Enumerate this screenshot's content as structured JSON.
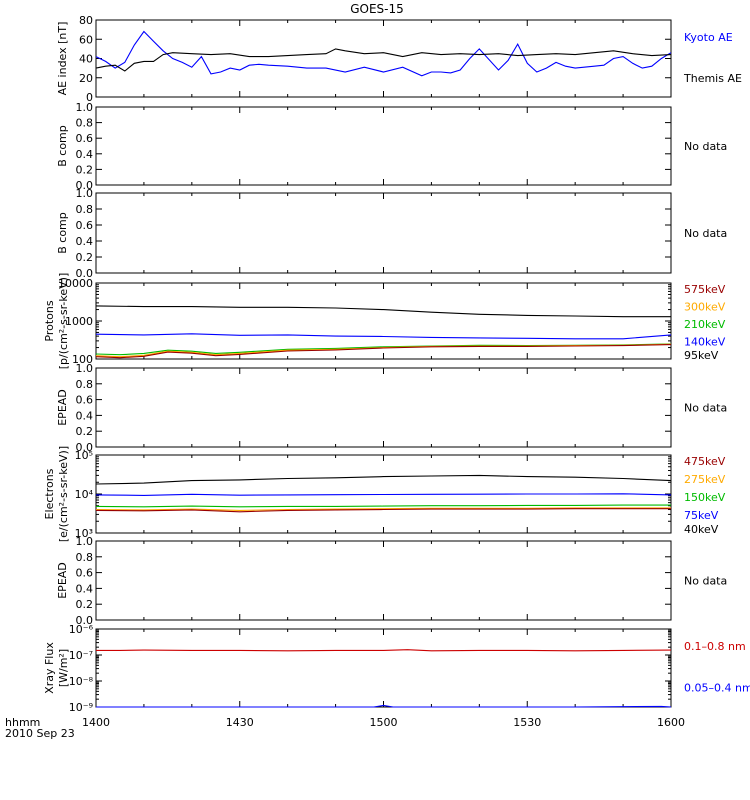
{
  "title": "GOES-15",
  "time_axis": {
    "unit_label": "hhmm",
    "date_label": "2010 Sep 23",
    "ticks": [
      "1400",
      "1430",
      "1500",
      "1530",
      "1600"
    ]
  },
  "colors": {
    "black": "#000000",
    "blue": "#0000ff",
    "red": "#cc0000",
    "orange": "#ffaa00",
    "green": "#00dd00",
    "darkred": "#990000"
  },
  "chart_data": [
    {
      "id": "ae",
      "type": "line",
      "ylabel": "AE index [nT]",
      "ylim": [
        0,
        80
      ],
      "yticks": [
        "0",
        "20",
        "40",
        "60",
        "80"
      ],
      "legend": [
        {
          "name": "Kyoto AE",
          "color": "#0000ff"
        },
        {
          "name": "Themis AE",
          "color": "#000000"
        }
      ],
      "series": [
        {
          "name": "Kyoto AE",
          "color": "#0000ff",
          "x": [
            0,
            2,
            4,
            6,
            8,
            10,
            12,
            14,
            16,
            18,
            20,
            22,
            24,
            26,
            28,
            30,
            32,
            34,
            36,
            40,
            44,
            48,
            52,
            56,
            60,
            64,
            68,
            70,
            72,
            74,
            76,
            78,
            80,
            84,
            86,
            88,
            90,
            92,
            94,
            96,
            98,
            100,
            104,
            106,
            108,
            110,
            112,
            114,
            116,
            118,
            120
          ],
          "y": [
            42,
            37,
            30,
            36,
            54,
            68,
            58,
            48,
            40,
            36,
            31,
            42,
            24,
            26,
            30,
            28,
            33,
            34,
            33,
            32,
            30,
            30,
            26,
            31,
            26,
            31,
            22,
            26,
            26,
            25,
            28,
            40,
            50,
            28,
            38,
            55,
            35,
            26,
            30,
            36,
            32,
            30,
            32,
            33,
            40,
            42,
            35,
            30,
            32,
            40,
            46
          ]
        },
        {
          "name": "Themis AE",
          "color": "#000000",
          "x": [
            0,
            2,
            4,
            6,
            8,
            10,
            12,
            14,
            16,
            20,
            24,
            28,
            32,
            36,
            40,
            44,
            48,
            50,
            52,
            56,
            60,
            64,
            68,
            72,
            76,
            80,
            84,
            88,
            92,
            96,
            100,
            104,
            108,
            112,
            116,
            120
          ],
          "y": [
            30,
            32,
            33,
            27,
            35,
            37,
            37,
            44,
            46,
            45,
            44,
            45,
            42,
            42,
            43,
            44,
            45,
            50,
            48,
            45,
            46,
            42,
            46,
            44,
            45,
            44,
            45,
            43,
            44,
            45,
            44,
            46,
            48,
            45,
            43,
            44
          ]
        }
      ]
    },
    {
      "id": "bcomp1",
      "type": "line",
      "ylabel": "B comp",
      "ylim": [
        0,
        1
      ],
      "yticks": [
        "0.0",
        "0.2",
        "0.4",
        "0.6",
        "0.8",
        "1.0"
      ],
      "status": "No data"
    },
    {
      "id": "bcomp2",
      "type": "line",
      "ylabel": "B comp",
      "ylim": [
        0,
        1
      ],
      "yticks": [
        "0.0",
        "0.2",
        "0.4",
        "0.6",
        "0.8",
        "1.0"
      ],
      "status": "No data"
    },
    {
      "id": "protons",
      "type": "line",
      "ylabel": "Protons",
      "ylabel2": "[p/(cm²-s-sr-keV)]",
      "yscale": "log",
      "ylim": [
        100,
        10000
      ],
      "yticks": [
        "100",
        "1000",
        "10000"
      ],
      "legend": [
        {
          "name": "575keV",
          "color": "#990000"
        },
        {
          "name": "300keV",
          "color": "#ffaa00"
        },
        {
          "name": "210keV",
          "color": "#00bb00"
        },
        {
          "name": "140keV",
          "color": "#0000ff"
        },
        {
          "name": "95keV",
          "color": "#000000"
        }
      ],
      "series": [
        {
          "name": "95keV",
          "color": "#000000",
          "x": [
            0,
            10,
            20,
            30,
            40,
            50,
            60,
            70,
            80,
            90,
            100,
            110,
            120
          ],
          "y": [
            2500,
            2400,
            2400,
            2300,
            2300,
            2200,
            2000,
            1700,
            1500,
            1400,
            1350,
            1300,
            1300
          ]
        },
        {
          "name": "140keV",
          "color": "#0000ff",
          "x": [
            0,
            10,
            20,
            30,
            40,
            50,
            60,
            70,
            80,
            90,
            100,
            110,
            120
          ],
          "y": [
            450,
            430,
            460,
            420,
            430,
            400,
            390,
            370,
            360,
            350,
            340,
            340,
            430
          ]
        },
        {
          "name": "210keV",
          "color": "#00bb00",
          "x": [
            0,
            5,
            10,
            15,
            20,
            25,
            30,
            40,
            50,
            60,
            70,
            80,
            90,
            100,
            110,
            120
          ],
          "y": [
            135,
            130,
            140,
            170,
            160,
            140,
            150,
            180,
            190,
            210,
            220,
            230,
            225,
            230,
            235,
            250
          ]
        },
        {
          "name": "300keV",
          "color": "#ffaa00",
          "x": [
            0,
            5,
            10,
            15,
            20,
            25,
            30,
            40,
            50,
            60,
            70,
            80,
            90,
            100,
            110,
            120
          ],
          "y": [
            122,
            115,
            125,
            160,
            150,
            130,
            140,
            170,
            180,
            200,
            215,
            220,
            220,
            225,
            230,
            245
          ]
        },
        {
          "name": "575keV",
          "color": "#990000",
          "x": [
            0,
            5,
            10,
            15,
            20,
            25,
            30,
            40,
            50,
            60,
            70,
            80,
            90,
            100,
            110,
            120
          ],
          "y": [
            115,
            108,
            118,
            152,
            142,
            122,
            132,
            162,
            172,
            195,
            210,
            215,
            215,
            220,
            225,
            240
          ]
        }
      ]
    },
    {
      "id": "epead1",
      "type": "line",
      "ylabel": "EPEAD",
      "ylim": [
        0,
        1
      ],
      "yticks": [
        "0.0",
        "0.2",
        "0.4",
        "0.6",
        "0.8",
        "1.0"
      ],
      "status": "No data"
    },
    {
      "id": "electrons",
      "type": "line",
      "ylabel": "Electrons",
      "ylabel2": "[e/(cm²-s-sr-keV)]",
      "yscale": "log",
      "ylim": [
        1000,
        100000
      ],
      "yticks": [
        "10³",
        "10⁴",
        "10⁵"
      ],
      "legend": [
        {
          "name": "475keV",
          "color": "#990000"
        },
        {
          "name": "275keV",
          "color": "#ffaa00"
        },
        {
          "name": "150keV",
          "color": "#00bb00"
        },
        {
          "name": "75keV",
          "color": "#0000ff"
        },
        {
          "name": "40keV",
          "color": "#000000"
        }
      ],
      "series": [
        {
          "name": "40keV",
          "color": "#000000",
          "x": [
            0,
            10,
            20,
            30,
            40,
            50,
            60,
            70,
            80,
            90,
            100,
            110,
            120
          ],
          "y": [
            18000,
            19000,
            22000,
            23000,
            25000,
            26000,
            28000,
            29000,
            30000,
            28000,
            27000,
            25000,
            22000
          ]
        },
        {
          "name": "75keV",
          "color": "#0000ff",
          "x": [
            0,
            10,
            20,
            30,
            40,
            50,
            60,
            70,
            80,
            90,
            100,
            110,
            120
          ],
          "y": [
            9500,
            9200,
            9800,
            9300,
            9500,
            9600,
            9700,
            9800,
            9900,
            10000,
            10000,
            10100,
            9500
          ]
        },
        {
          "name": "150keV",
          "color": "#00bb00",
          "x": [
            0,
            10,
            20,
            30,
            40,
            50,
            60,
            70,
            80,
            90,
            100,
            110,
            120
          ],
          "y": [
            4800,
            4700,
            4900,
            4700,
            4800,
            4800,
            4900,
            5000,
            5000,
            5100,
            5100,
            5200,
            5200
          ]
        },
        {
          "name": "275keV",
          "color": "#ffaa00",
          "x": [
            0,
            10,
            20,
            30,
            40,
            50,
            60,
            70,
            80,
            90,
            100,
            110,
            120
          ],
          "y": [
            4000,
            3900,
            4100,
            3800,
            4000,
            4100,
            4200,
            4300,
            4300,
            4300,
            4400,
            4400,
            4400
          ]
        },
        {
          "name": "475keV",
          "color": "#990000",
          "x": [
            0,
            10,
            20,
            30,
            40,
            50,
            60,
            70,
            80,
            90,
            100,
            110,
            120
          ],
          "y": [
            3800,
            3700,
            3900,
            3500,
            3800,
            3900,
            4000,
            4100,
            4100,
            4100,
            4200,
            4200,
            4200
          ]
        }
      ]
    },
    {
      "id": "epead2",
      "type": "line",
      "ylabel": "EPEAD",
      "ylim": [
        0,
        1
      ],
      "yticks": [
        "0.0",
        "0.2",
        "0.4",
        "0.6",
        "0.8",
        "1.0"
      ],
      "status": "No data"
    },
    {
      "id": "xray",
      "type": "line",
      "ylabel": "Xray Flux",
      "ylabel2": "[W/m²]",
      "yscale": "log",
      "ylim": [
        1e-09,
        1e-06
      ],
      "yticks": [
        "10⁻⁹",
        "10⁻⁸",
        "10⁻⁷",
        "10⁻⁶"
      ],
      "legend": [
        {
          "name": "0.1–0.8 nm",
          "color": "#cc0000"
        },
        {
          "name": "0.05–0.4 nm",
          "color": "#0000ff"
        }
      ],
      "series": [
        {
          "name": "0.1–0.8 nm",
          "color": "#cc0000",
          "x": [
            0,
            5,
            10,
            20,
            30,
            40,
            50,
            60,
            65,
            70,
            80,
            90,
            100,
            110,
            120
          ],
          "y": [
            1.5e-07,
            1.5e-07,
            1.55e-07,
            1.5e-07,
            1.5e-07,
            1.45e-07,
            1.5e-07,
            1.5e-07,
            1.6e-07,
            1.45e-07,
            1.5e-07,
            1.5e-07,
            1.45e-07,
            1.5e-07,
            1.55e-07
          ]
        },
        {
          "name": "0.05–0.4 nm",
          "color": "#0000ff",
          "x": [
            0,
            20,
            40,
            58,
            60,
            62,
            80,
            100,
            118,
            120
          ],
          "y": [
            1e-09,
            1e-09,
            1e-09,
            1e-09,
            1.15e-09,
            1e-09,
            1e-09,
            1e-09,
            1.05e-09,
            1e-09
          ]
        }
      ]
    }
  ]
}
